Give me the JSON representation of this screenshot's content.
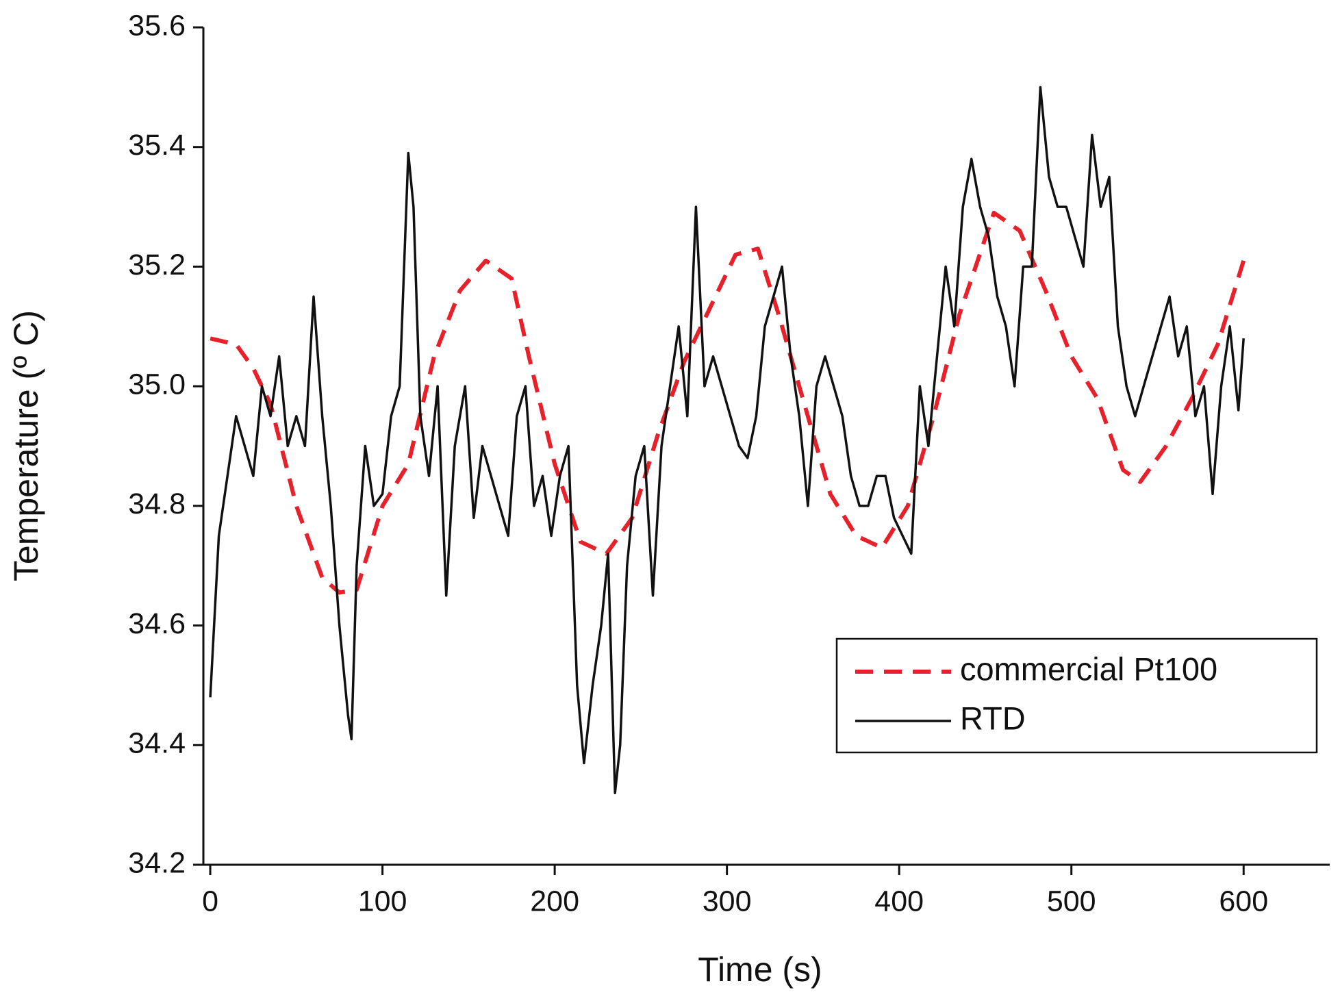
{
  "chart_data": {
    "type": "line",
    "x_label": "Time (s)",
    "y_label": "Temperature (º C)",
    "xlim": [
      -4,
      650
    ],
    "ylim": [
      34.2,
      35.6
    ],
    "xticks": [
      0,
      100,
      200,
      300,
      400,
      500,
      600
    ],
    "yticks": [
      34.2,
      34.4,
      34.6,
      34.8,
      {
        "value": 35,
        "label": "35.0"
      },
      35.2,
      35.4,
      35.6
    ],
    "legend": "lower right",
    "series": [
      {
        "name": "commercial Pt100",
        "color": "#e8202a",
        "dash": "dashed",
        "x": [
          0,
          15,
          25,
          35,
          50,
          65,
          75,
          85,
          100,
          115,
          130,
          145,
          160,
          175,
          185,
          200,
          215,
          230,
          245,
          260,
          275,
          290,
          305,
          318,
          330,
          345,
          360,
          375,
          390,
          405,
          420,
          435,
          455,
          470,
          485,
          500,
          515,
          530,
          540,
          555,
          570,
          585,
          600
        ],
        "values": [
          35.08,
          35.07,
          35.03,
          34.97,
          34.8,
          34.68,
          34.655,
          34.66,
          34.8,
          34.87,
          35.05,
          35.16,
          35.21,
          35.18,
          35.05,
          34.87,
          34.74,
          34.72,
          34.78,
          34.92,
          35.04,
          35.13,
          35.22,
          35.23,
          35.12,
          34.97,
          34.82,
          34.75,
          34.73,
          34.8,
          34.95,
          35.12,
          35.29,
          35.26,
          35.16,
          35.05,
          34.98,
          34.86,
          34.84,
          34.9,
          34.98,
          35.07,
          35.21
        ]
      },
      {
        "name": "RTD",
        "color": "#111111",
        "dash": "solid",
        "x": [
          0,
          5,
          10,
          15,
          20,
          25,
          30,
          35,
          40,
          45,
          50,
          55,
          60,
          65,
          70,
          75,
          80,
          82,
          85,
          90,
          95,
          100,
          105,
          110,
          115,
          118,
          122,
          127,
          132,
          137,
          142,
          148,
          153,
          158,
          163,
          168,
          173,
          178,
          183,
          188,
          193,
          198,
          203,
          208,
          213,
          217,
          222,
          227,
          231,
          235,
          238,
          242,
          247,
          252,
          257,
          262,
          267,
          272,
          277,
          282,
          287,
          292,
          297,
          302,
          307,
          312,
          317,
          322,
          327,
          332,
          337,
          342,
          347,
          352,
          357,
          362,
          367,
          372,
          377,
          382,
          387,
          392,
          397,
          402,
          407,
          412,
          417,
          422,
          427,
          432,
          437,
          442,
          447,
          452,
          457,
          462,
          467,
          472,
          477,
          482,
          487,
          492,
          497,
          502,
          507,
          512,
          517,
          522,
          527,
          532,
          537,
          542,
          547,
          552,
          557,
          562,
          567,
          572,
          577,
          582,
          587,
          592,
          597,
          600
        ],
        "values": [
          34.48,
          34.75,
          34.85,
          34.95,
          34.9,
          34.85,
          35.0,
          34.95,
          35.05,
          34.9,
          34.95,
          34.9,
          35.15,
          34.95,
          34.8,
          34.6,
          34.45,
          34.41,
          34.7,
          34.9,
          34.8,
          34.82,
          34.95,
          35.0,
          35.39,
          35.3,
          34.95,
          34.85,
          35.0,
          34.65,
          34.9,
          35.0,
          34.78,
          34.9,
          34.85,
          34.8,
          34.75,
          34.95,
          35.0,
          34.8,
          34.85,
          34.75,
          34.85,
          34.9,
          34.5,
          34.37,
          34.5,
          34.6,
          34.72,
          34.32,
          34.4,
          34.7,
          34.85,
          34.9,
          34.65,
          34.9,
          35.0,
          35.1,
          34.95,
          35.3,
          35.0,
          35.05,
          35.0,
          34.95,
          34.9,
          34.88,
          34.95,
          35.1,
          35.15,
          35.2,
          35.05,
          34.95,
          34.8,
          35.0,
          35.05,
          35.0,
          34.95,
          34.85,
          34.8,
          34.8,
          34.85,
          34.85,
          34.78,
          34.75,
          34.72,
          35.0,
          34.9,
          35.05,
          35.2,
          35.1,
          35.3,
          35.38,
          35.3,
          35.25,
          35.15,
          35.1,
          35.0,
          35.2,
          35.2,
          35.5,
          35.35,
          35.3,
          35.3,
          35.25,
          35.2,
          35.42,
          35.3,
          35.35,
          35.1,
          35.0,
          34.95,
          35.0,
          35.05,
          35.1,
          35.15,
          35.05,
          35.1,
          34.95,
          35.0,
          34.82,
          35.0,
          35.1,
          34.96,
          35.08
        ]
      }
    ]
  }
}
